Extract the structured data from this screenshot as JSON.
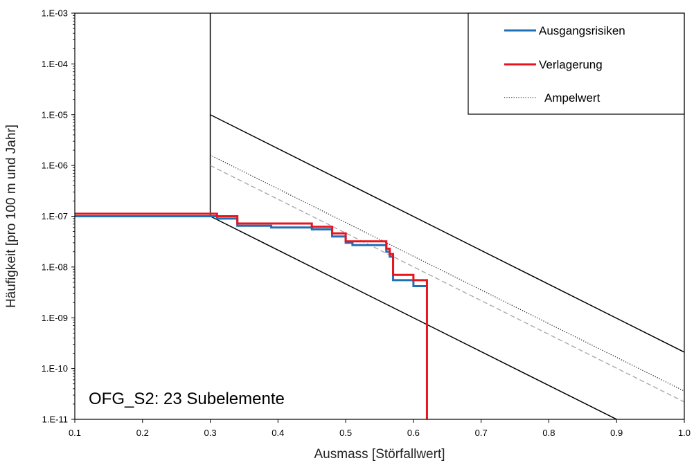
{
  "chart_data": {
    "type": "line",
    "title": "",
    "xlabel": "Ausmass [Störfallwert]",
    "ylabel": "Häufigkeit [pro 100 m und Jahr]",
    "xlim": [
      0.1,
      1.0
    ],
    "ylim": [
      1e-11,
      0.001
    ],
    "yscale": "log",
    "grid": false,
    "legend_position": "top-right",
    "x_ticks": [
      0.1,
      0.2,
      0.3,
      0.4,
      0.5,
      0.6,
      0.7,
      0.8,
      0.9,
      1.0
    ],
    "x_tick_labels": [
      "0.1",
      "0.2",
      "0.3",
      "0.4",
      "0.5",
      "0.6",
      "0.7",
      "0.8",
      "0.9",
      "1.0"
    ],
    "y_ticks": [
      1e-11,
      1e-10,
      1e-09,
      1e-08,
      1e-07,
      1e-06,
      1e-05,
      0.0001,
      0.001
    ],
    "y_tick_labels": [
      "1.E-11",
      "1.E-10",
      "1.E-09",
      "1.E-08",
      "1.E-07",
      "1.E-06",
      "1.E-05",
      "1.E-04",
      "1.E-03"
    ],
    "annotation": "OFG_S2: 23 Subelemente",
    "series": [
      {
        "name": "Ausgangsrisiken",
        "color": "#1f6fb4",
        "style": "solid",
        "step": true,
        "x": [
          0.1,
          0.3,
          0.31,
          0.34,
          0.39,
          0.45,
          0.48,
          0.5,
          0.51,
          0.56,
          0.565,
          0.57,
          0.6,
          0.62
        ],
        "y": [
          1e-07,
          1e-07,
          9e-08,
          6.5e-08,
          6e-08,
          5.5e-08,
          4e-08,
          3e-08,
          2.7e-08,
          2e-08,
          1.6e-08,
          5.5e-09,
          4.2e-09,
          4.2e-09
        ]
      },
      {
        "name": "Verlagerung",
        "color": "#e8141b",
        "style": "solid",
        "step": true,
        "x": [
          0.1,
          0.31,
          0.34,
          0.45,
          0.48,
          0.5,
          0.56,
          0.565,
          0.57,
          0.6,
          0.62,
          0.62
        ],
        "y": [
          1.12e-07,
          1e-07,
          7.2e-08,
          6.2e-08,
          4.6e-08,
          3.2e-08,
          2.3e-08,
          1.8e-08,
          7e-09,
          5.5e-09,
          5.5e-09,
          1e-11
        ]
      },
      {
        "name": "Ampelwert",
        "color": "#222222",
        "style": "dotted",
        "step": false,
        "x": [
          0.3,
          1.0
        ],
        "y": [
          1.6e-06,
          3.6e-11
        ]
      }
    ],
    "reference_lines": [
      {
        "style": "solid",
        "color": "#000000",
        "x": [
          0.3,
          0.3
        ],
        "y": [
          0.001,
          1e-07
        ]
      },
      {
        "style": "solid",
        "color": "#000000",
        "x": [
          0.3,
          0.9
        ],
        "y": [
          1e-07,
          1e-11
        ]
      },
      {
        "style": "solid",
        "color": "#000000",
        "x": [
          0.3,
          1.0
        ],
        "y": [
          1e-05,
          2.1e-10
        ]
      },
      {
        "style": "dashed",
        "color": "#aaaaaa",
        "x": [
          0.3,
          1.0
        ],
        "y": [
          1e-06,
          2.2e-11
        ]
      }
    ]
  }
}
